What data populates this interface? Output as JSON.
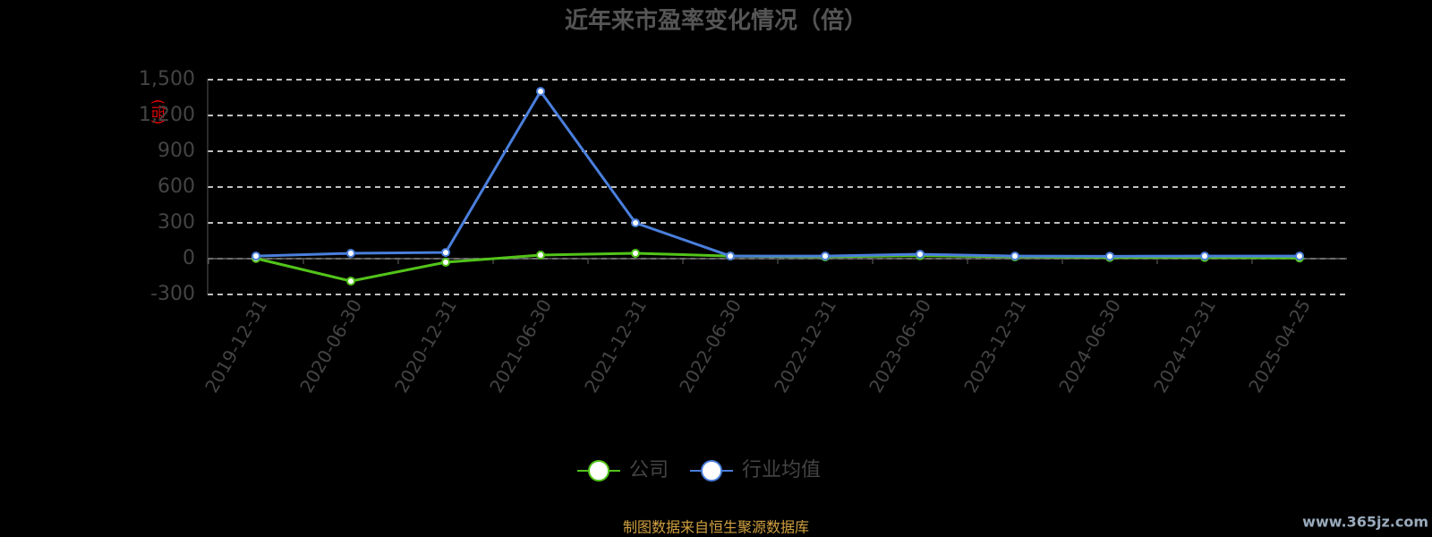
{
  "chart_data": {
    "type": "line",
    "title": "近年来市盈率变化情况（倍）",
    "y_label": "(倍)",
    "categories": [
      "2019-12-31",
      "2020-06-30",
      "2020-12-31",
      "2021-06-30",
      "2021-12-31",
      "2022-06-30",
      "2022-12-31",
      "2023-06-30",
      "2023-12-31",
      "2024-06-30",
      "2024-12-31",
      "2025-04-25"
    ],
    "series": [
      {
        "name": "公司",
        "color": "#52c41a",
        "values": [
          2,
          -188,
          -30,
          30,
          45,
          22,
          15,
          25,
          15,
          10,
          10,
          6
        ]
      },
      {
        "name": "行业均值",
        "color": "#4a7fdc",
        "values": [
          22,
          45,
          52,
          1402,
          300,
          22,
          22,
          37,
          22,
          20,
          22,
          22
        ]
      }
    ],
    "ylim": [
      -300,
      1500
    ],
    "yticks": [
      -300,
      0,
      300,
      600,
      900,
      {
        "value": 1200,
        "label": "1,200"
      },
      {
        "value": 1500,
        "label": "1,500"
      }
    ],
    "grid": true,
    "legend": "bottom",
    "footer": "制图数据来自恒生聚源数据库",
    "watermark": "www.365jz.com"
  }
}
